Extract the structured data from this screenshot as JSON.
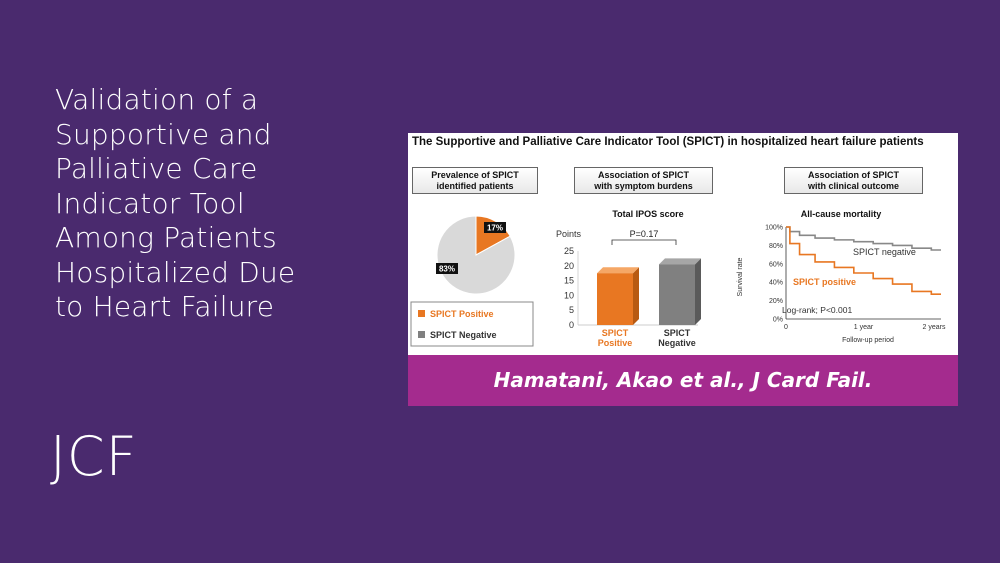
{
  "slide": {
    "title_lines": [
      "Validation of a",
      "Supportive and",
      "Palliative Care",
      "Indicator Tool",
      "Among Patients",
      "Hospitalized Due",
      "to Heart Failure"
    ],
    "journal": "JCF"
  },
  "abstract": {
    "title": "The Supportive and Palliative Care Indicator Tool (SPICT) in hospitalized heart failure patients",
    "citation": "Hamatani, Akao et al., J Card Fail.",
    "panels": [
      {
        "head_lines": [
          "Prevalence of SPICT",
          "identified patients"
        ]
      },
      {
        "head_lines": [
          "Association of SPICT",
          "with symptom burdens"
        ]
      },
      {
        "head_lines": [
          "Association of SPICT",
          "with clinical outcome"
        ]
      }
    ]
  },
  "colors": {
    "background": "#4a2a6e",
    "band": "#a42b8e",
    "spict_positive": "#e87722",
    "spict_negative": "#808080"
  },
  "chart_data": [
    {
      "type": "pie",
      "labels": [
        "SPICT Positive",
        "SPICT Negative"
      ],
      "values": [
        17,
        83
      ],
      "slice_labels": [
        "17%",
        "83%"
      ],
      "legend": [
        "SPICT Positive",
        "SPICT Negative"
      ]
    },
    {
      "type": "bar",
      "title": "Total IPOS score",
      "ylabel": "Points",
      "categories": [
        "SPICT\nPositive",
        "SPICT\nNegative"
      ],
      "category_lines": [
        [
          "SPICT",
          "Positive"
        ],
        [
          "SPICT",
          "Negative"
        ]
      ],
      "values": [
        17.5,
        20.5
      ],
      "ylim": [
        0,
        25
      ],
      "yticks": [
        "0",
        "5",
        "10",
        "15",
        "20",
        "25"
      ],
      "annotation": "P=0.17"
    },
    {
      "type": "line",
      "title": "All-cause mortality",
      "ylabel": "Survival rate",
      "xlabel": "Follow-up period",
      "xticks": [
        "0",
        "1 year",
        "2 years"
      ],
      "yticks": [
        "0%",
        "20%",
        "40%",
        "60%",
        "80%",
        "100%"
      ],
      "ylim": [
        0,
        100
      ],
      "xlim": [
        0,
        2
      ],
      "annotation": "Log-rank; P<0.001",
      "series": [
        {
          "name": "SPICT negative",
          "x": [
            0,
            0.1,
            0.25,
            0.5,
            0.75,
            1.0,
            1.25,
            1.5,
            1.75,
            2.0
          ],
          "y": [
            100,
            95,
            91,
            88,
            86,
            84,
            82,
            80,
            77,
            75
          ]
        },
        {
          "name": "SPICT positive",
          "x": [
            0,
            0.1,
            0.25,
            0.5,
            0.75,
            1.0,
            1.25,
            1.5,
            1.75,
            2.0
          ],
          "y": [
            100,
            82,
            70,
            62,
            56,
            50,
            44,
            38,
            30,
            27
          ]
        }
      ]
    }
  ]
}
